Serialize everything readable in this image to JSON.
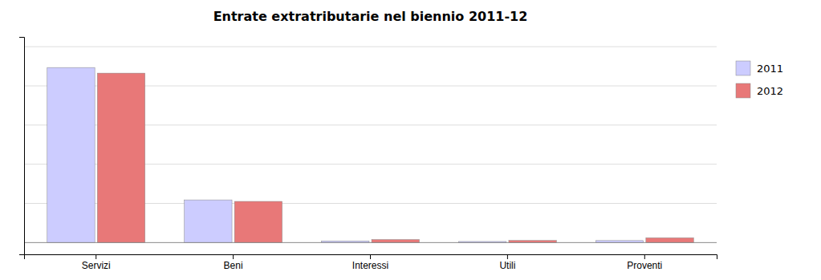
{
  "chart_data": {
    "type": "bar",
    "title": "Entrate extratributarie nel biennio 2011-12",
    "categories": [
      "Servizi",
      "Beni",
      "Interessi",
      "Utili",
      "Proventi"
    ],
    "series": [
      {
        "name": "2011",
        "color": "#ccccff",
        "values": [
          3485600,
          850000,
          32000,
          22000,
          40000
        ]
      },
      {
        "name": "2012",
        "color": "#e87878",
        "values": [
          3374000,
          820000,
          60000,
          42000,
          95000
        ]
      }
    ],
    "ylim": [
      -234000,
      4095000
    ],
    "yticks": [
      780000,
      1560000,
      2340000,
      3120000,
      3900000
    ],
    "grid": true,
    "legend": "right",
    "tick_labels": "x"
  }
}
